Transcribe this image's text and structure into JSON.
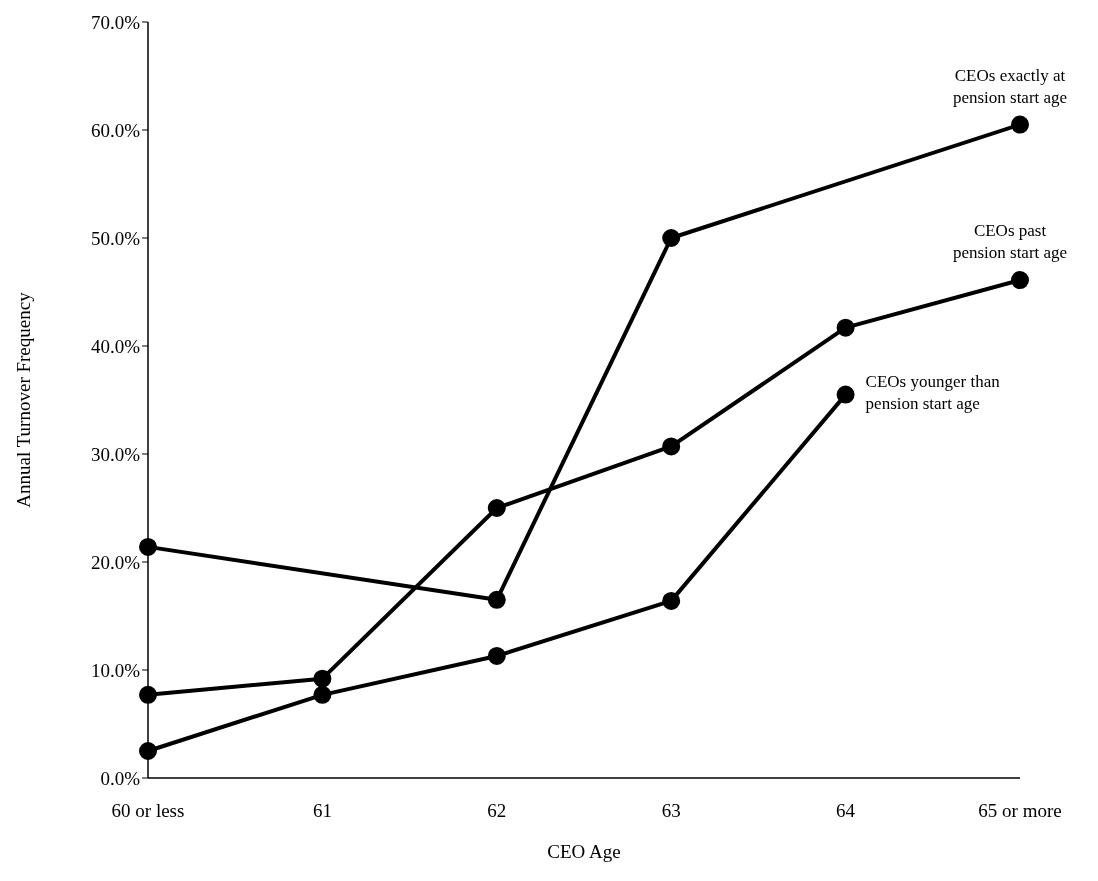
{
  "chart_data": {
    "type": "line",
    "xlabel": "CEO Age",
    "ylabel": "Annual Turnover Frequency",
    "categories": [
      "60 or less",
      "61",
      "62",
      "63",
      "64",
      "65 or more"
    ],
    "series": [
      {
        "name": "CEOs exactly at pension start age",
        "color": "#000000",
        "values": [
          21.4,
          null,
          16.5,
          50.0,
          null,
          60.5
        ]
      },
      {
        "name": "CEOs past pension start age",
        "color": "#000000",
        "values": [
          7.7,
          9.2,
          25.0,
          30.7,
          41.7,
          46.1
        ]
      },
      {
        "name": "CEOs younger than pension start age",
        "color": "#000000",
        "values": [
          2.5,
          7.7,
          11.3,
          16.4,
          35.5,
          null
        ]
      }
    ],
    "ylim": [
      0,
      70
    ],
    "yticks": [
      {
        "value": 0,
        "label": "0.0%"
      },
      {
        "value": 10,
        "label": "10.0%"
      },
      {
        "value": 20,
        "label": "20.0%"
      },
      {
        "value": 30,
        "label": "30.0%"
      },
      {
        "value": 40,
        "label": "40.0%"
      },
      {
        "value": 50,
        "label": "50.0%"
      },
      {
        "value": 60,
        "label": "60.0%"
      },
      {
        "value": 70,
        "label": "70.0%"
      }
    ],
    "grid": false,
    "legend": false,
    "marker": "circle",
    "line_style": "solid"
  }
}
